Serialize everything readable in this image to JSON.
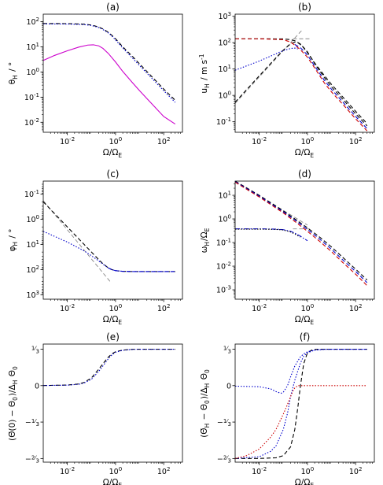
{
  "chart_data": [
    {
      "id": "a",
      "type": "line",
      "title": "(a)",
      "xlabel": "Ω/Ω_E",
      "ylabel": "θ_H / °",
      "xscale": "log",
      "yscale": "log",
      "xlim": [
        0.001,
        600
      ],
      "ylim": [
        0.004,
        200
      ],
      "yreverse": false,
      "xticks": [
        {
          "v": 0.01,
          "t": "10^-2"
        },
        {
          "v": 1,
          "t": "10^0"
        },
        {
          "v": 100,
          "t": "10^2"
        }
      ],
      "yticks": [
        {
          "v": 0.01,
          "t": "10^-2"
        },
        {
          "v": 0.1,
          "t": "10^-1"
        },
        {
          "v": 1,
          "t": "10^0"
        },
        {
          "v": 10,
          "t": "10^1"
        },
        {
          "v": 100,
          "t": "10^2"
        }
      ],
      "series": [
        {
          "color": "#000000",
          "dash": "dashed",
          "x": [
            0.001,
            0.01,
            0.05,
            0.1,
            0.2,
            0.3,
            0.5,
            0.7,
            1,
            2,
            5,
            10,
            30,
            100,
            300
          ],
          "y": [
            85,
            84,
            80,
            74,
            62,
            52,
            38,
            29,
            21,
            10,
            4.2,
            2.1,
            0.7,
            0.21,
            0.075
          ]
        },
        {
          "color": "#0000cc",
          "dash": "dotted",
          "x": [
            0.001,
            0.01,
            0.05,
            0.1,
            0.2,
            0.3,
            0.5,
            0.7,
            1,
            2,
            5,
            10,
            30,
            100,
            300
          ],
          "y": [
            82,
            81,
            77,
            71,
            59,
            49,
            36,
            27,
            19,
            9,
            3.6,
            1.8,
            0.6,
            0.18,
            0.062
          ]
        },
        {
          "color": "#cc00cc",
          "dash": "solid",
          "x": [
            0.001,
            0.003,
            0.01,
            0.03,
            0.07,
            0.12,
            0.2,
            0.3,
            0.5,
            1,
            2,
            5,
            10,
            30,
            100,
            300
          ],
          "y": [
            2.9,
            4.6,
            7,
            9.8,
            11.8,
            12.1,
            11,
            8.7,
            5.5,
            2.5,
            1.05,
            0.38,
            0.18,
            0.058,
            0.017,
            0.0085
          ]
        }
      ]
    },
    {
      "id": "b",
      "type": "line",
      "title": "(b)",
      "xlabel": "Ω/Ω_E",
      "ylabel": "u_H / m s^-1",
      "xscale": "log",
      "yscale": "log",
      "xlim": [
        0.001,
        600
      ],
      "ylim": [
        0.04,
        1200
      ],
      "yreverse": false,
      "xticks": [
        {
          "v": 0.01,
          "t": "10^-2"
        },
        {
          "v": 1,
          "t": "10^0"
        },
        {
          "v": 100,
          "t": "10^2"
        }
      ],
      "yticks": [
        {
          "v": 0.1,
          "t": "10^-1"
        },
        {
          "v": 1,
          "t": "10^0"
        },
        {
          "v": 10,
          "t": "10^1"
        },
        {
          "v": 100,
          "t": "10^2"
        },
        {
          "v": 1000,
          "t": "10^3"
        }
      ],
      "series": [
        {
          "color": "#888888",
          "dash": "dashed",
          "x": [
            0.001,
            0.6
          ],
          "y": [
            0.5,
            300
          ]
        },
        {
          "color": "#888888",
          "dash": "dashed",
          "x": [
            0.25,
            1.5
          ],
          "y": [
            140,
            140
          ]
        },
        {
          "color": "#000000",
          "dash": "dashed",
          "x": [
            0.001,
            0.01,
            0.05,
            0.1,
            0.2,
            0.3,
            0.4,
            0.6,
            1,
            2,
            5,
            10,
            30,
            100,
            300
          ],
          "y": [
            0.55,
            5.5,
            27,
            52,
            90,
            105,
            100,
            75,
            42,
            17,
            5.7,
            2.6,
            0.85,
            0.25,
            0.085
          ]
        },
        {
          "color": "#0000cc",
          "dash": "dotted",
          "x": [
            0.001,
            0.01,
            0.05,
            0.1,
            0.2,
            0.3,
            0.4
          ],
          "y": [
            9,
            20,
            38,
            50,
            60,
            62,
            58
          ]
        },
        {
          "color": "#000000",
          "dash": "dashed",
          "x": [
            0.001,
            0.01,
            0.1,
            0.2,
            0.3,
            0.5,
            0.7,
            1,
            2,
            5,
            10,
            30,
            100,
            300
          ],
          "y": [
            140,
            140,
            138,
            130,
            118,
            90,
            65,
            45,
            16,
            4.8,
            2.1,
            0.7,
            0.2,
            0.07
          ]
        },
        {
          "color": "#0000cc",
          "dash": "dashed",
          "x": [
            0.3,
            0.5,
            0.7,
            1,
            2,
            5,
            10,
            30,
            100,
            300
          ],
          "y": [
            85,
            65,
            48,
            34,
            13,
            3.8,
            1.7,
            0.55,
            0.16,
            0.055
          ]
        },
        {
          "color": "#cc0000",
          "dash": "dashed",
          "x": [
            0.001,
            0.01,
            0.1,
            0.2,
            0.3,
            0.5,
            0.7,
            1,
            2,
            5,
            10,
            30,
            100,
            300
          ],
          "y": [
            140,
            140,
            130,
            105,
            80,
            55,
            40,
            28,
            11,
            3,
            1.35,
            0.45,
            0.13,
            0.045
          ]
        }
      ]
    },
    {
      "id": "c",
      "type": "line",
      "title": "(c)",
      "xlabel": "Ω/Ω_E",
      "ylabel": "φ_H / °",
      "xscale": "log",
      "yscale": "log",
      "xlim": [
        0.001,
        600
      ],
      "ylim": [
        0.03,
        1500
      ],
      "yreverse": true,
      "xticks": [
        {
          "v": 0.01,
          "t": "10^-2"
        },
        {
          "v": 1,
          "t": "10^0"
        },
        {
          "v": 100,
          "t": "10^2"
        }
      ],
      "yticks": [
        {
          "v": 0.1,
          "t": "10^-1"
        },
        {
          "v": 1,
          "t": "10^0"
        },
        {
          "v": 10,
          "t": "10^1"
        },
        {
          "v": 100,
          "t": "10^2"
        },
        {
          "v": 1000,
          "t": "10^3"
        }
      ],
      "series": [
        {
          "color": "#888888",
          "dash": "dashed",
          "x": [
            0.001,
            0.6
          ],
          "y": [
            0.18,
            300
          ]
        },
        {
          "color": "#000000",
          "dash": "dashed",
          "x": [
            0.001,
            0.01,
            0.05,
            0.1,
            0.2,
            0.3,
            0.5,
            0.7,
            1,
            2,
            5,
            10,
            30,
            100,
            300
          ],
          "y": [
            0.2,
            2,
            10,
            20,
            40,
            58,
            85,
            100,
            110,
            117,
            119,
            120,
            120,
            120,
            120
          ]
        },
        {
          "color": "#0000cc",
          "dash": "dotted",
          "x": [
            0.001,
            0.01,
            0.05,
            0.1,
            0.2,
            0.3,
            0.5,
            0.7,
            1,
            2,
            5,
            10,
            30,
            100,
            300
          ],
          "y": [
            3,
            8,
            18,
            28,
            45,
            60,
            85,
            100,
            110,
            117,
            119,
            120,
            120,
            120,
            120
          ]
        },
        {
          "color": "#0000cc",
          "dash": "dashed",
          "x": [
            0.5,
            0.7,
            1,
            2,
            5,
            10,
            30,
            100,
            300
          ],
          "y": [
            86,
            100,
            110,
            117,
            119,
            120,
            120,
            120,
            120
          ]
        }
      ]
    },
    {
      "id": "d",
      "type": "line",
      "title": "(d)",
      "xlabel": "Ω/Ω_E",
      "ylabel": "ω_H/Ω_E",
      "xscale": "log",
      "yscale": "log",
      "xlim": [
        0.001,
        600
      ],
      "ylim": [
        0.0004,
        40
      ],
      "yreverse": false,
      "xticks": [
        {
          "v": 0.01,
          "t": "10^-2"
        },
        {
          "v": 1,
          "t": "10^0"
        },
        {
          "v": 100,
          "t": "10^2"
        }
      ],
      "yticks": [
        {
          "v": 0.001,
          "t": "10^-3"
        },
        {
          "v": 0.01,
          "t": "10^-2"
        },
        {
          "v": 0.1,
          "t": "10^-1"
        },
        {
          "v": 1,
          "t": "10^0"
        },
        {
          "v": 10,
          "t": "10^1"
        }
      ],
      "series": [
        {
          "color": "#888888",
          "dash": "dashed",
          "x": [
            0.25,
            1.5
          ],
          "y": [
            0.38,
            0.38
          ]
        },
        {
          "color": "#888888",
          "dash": "dashed",
          "x": [
            0.001,
            1
          ],
          "y": [
            40,
            0.55
          ]
        },
        {
          "color": "#000000",
          "dash": "dashed",
          "x": [
            0.001,
            0.01,
            0.1,
            0.3,
            1,
            3,
            10,
            30,
            100,
            300
          ],
          "y": [
            40,
            10,
            2.2,
            1,
            0.42,
            0.18,
            0.065,
            0.023,
            0.0075,
            0.0026
          ]
        },
        {
          "color": "#0000cc",
          "dash": "dashed",
          "x": [
            0.001,
            0.01,
            0.1,
            0.3,
            1,
            3,
            10,
            30,
            100,
            300
          ],
          "y": [
            38,
            9.2,
            2,
            0.9,
            0.36,
            0.15,
            0.052,
            0.018,
            0.006,
            0.002
          ]
        },
        {
          "color": "#cc0000",
          "dash": "dashed",
          "x": [
            0.001,
            0.01,
            0.1,
            0.3,
            1,
            3,
            10,
            30,
            100,
            300
          ],
          "y": [
            36,
            8.5,
            1.8,
            0.78,
            0.3,
            0.12,
            0.041,
            0.014,
            0.0046,
            0.0015
          ]
        },
        {
          "color": "#0000cc",
          "dash": "dashdot",
          "x": [
            0.001,
            0.01,
            0.05,
            0.1,
            0.2,
            0.3,
            0.5,
            0.7,
            1
          ],
          "y": [
            0.38,
            0.38,
            0.37,
            0.35,
            0.3,
            0.25,
            0.19,
            0.15,
            0.12
          ]
        },
        {
          "color": "#000000",
          "dash": "dotted",
          "x": [
            0.001,
            0.01,
            0.05,
            0.1,
            0.2,
            0.3,
            0.5
          ],
          "y": [
            0.37,
            0.37,
            0.36,
            0.34,
            0.28,
            0.23,
            0.17
          ]
        }
      ]
    },
    {
      "id": "e",
      "type": "line",
      "title": "(e)",
      "xlabel": "Ω/Ω_E",
      "ylabel": "(Θ̄(0) − Θ_0)/Δ_H Θ_0",
      "xscale": "log",
      "yscale": "linear",
      "xlim": [
        0.001,
        600
      ],
      "ylim": [
        -0.7,
        0.38
      ],
      "yreverse": false,
      "xticks": [
        {
          "v": 0.01,
          "t": "10^-2"
        },
        {
          "v": 1,
          "t": "10^0"
        },
        {
          "v": 100,
          "t": "10^2"
        }
      ],
      "yticks": [
        {
          "v": 0.333333,
          "t": "1/3"
        },
        {
          "v": 0,
          "t": "0"
        },
        {
          "v": -0.333333,
          "t": "−1/3"
        },
        {
          "v": -0.666667,
          "t": "−2/3"
        }
      ],
      "series": [
        {
          "color": "#000000",
          "dash": "dashed",
          "x": [
            0.001,
            0.01,
            0.03,
            0.05,
            0.1,
            0.2,
            0.3,
            0.5,
            0.7,
            1,
            2,
            5,
            10,
            100,
            300
          ],
          "y": [
            0.001,
            0.005,
            0.015,
            0.03,
            0.07,
            0.15,
            0.2,
            0.26,
            0.29,
            0.31,
            0.325,
            0.332,
            0.333,
            0.333,
            0.333
          ]
        },
        {
          "color": "#0000cc",
          "dash": "dotted",
          "x": [
            0.001,
            0.01,
            0.03,
            0.05,
            0.1,
            0.2,
            0.3,
            0.5,
            0.7,
            1,
            2,
            5,
            10,
            100,
            300
          ],
          "y": [
            0.001,
            0.004,
            0.012,
            0.024,
            0.058,
            0.13,
            0.18,
            0.245,
            0.28,
            0.305,
            0.323,
            0.331,
            0.333,
            0.333,
            0.333
          ]
        }
      ]
    },
    {
      "id": "f",
      "type": "line",
      "title": "(f)",
      "xlabel": "Ω/Ω_E",
      "ylabel": "(Θ̄_H − Θ_0)/Δ_H Θ_0",
      "xscale": "log",
      "yscale": "linear",
      "xlim": [
        0.001,
        600
      ],
      "ylim": [
        -0.7,
        0.38
      ],
      "yreverse": false,
      "xticks": [
        {
          "v": 0.01,
          "t": "10^-2"
        },
        {
          "v": 1,
          "t": "10^0"
        },
        {
          "v": 100,
          "t": "10^2"
        }
      ],
      "yticks": [
        {
          "v": 0.333333,
          "t": "1/3"
        },
        {
          "v": 0,
          "t": "0"
        },
        {
          "v": -0.333333,
          "t": "−1/3"
        },
        {
          "v": -0.666667,
          "t": "−2/3"
        }
      ],
      "series": [
        {
          "color": "#000000",
          "dash": "dashed",
          "x": [
            0.001,
            0.01,
            0.05,
            0.1,
            0.2,
            0.3,
            0.4,
            0.5,
            0.7,
            1,
            1.5,
            2,
            3,
            5,
            10,
            300
          ],
          "y": [
            -0.666,
            -0.666,
            -0.66,
            -0.64,
            -0.56,
            -0.4,
            -0.2,
            -0.02,
            0.2,
            0.3,
            0.325,
            0.33,
            0.333,
            0.333,
            0.333,
            0.333
          ]
        },
        {
          "color": "#0000cc",
          "dash": "dotted",
          "x": [
            0.001,
            0.01,
            0.03,
            0.05,
            0.08,
            0.1,
            0.15,
            0.2,
            0.3,
            0.5,
            0.7,
            1,
            2,
            5,
            10,
            300
          ],
          "y": [
            -0.005,
            -0.01,
            -0.03,
            -0.055,
            -0.07,
            -0.06,
            0.0,
            0.08,
            0.18,
            0.26,
            0.29,
            0.31,
            0.325,
            0.332,
            0.333,
            0.333
          ]
        },
        {
          "color": "#0000cc",
          "dash": "dotted",
          "x": [
            0.001,
            0.01,
            0.03,
            0.05,
            0.1,
            0.15,
            0.2,
            0.3,
            0.5,
            0.7,
            1,
            2,
            5,
            10,
            300
          ],
          "y": [
            -0.666,
            -0.65,
            -0.6,
            -0.55,
            -0.4,
            -0.25,
            -0.1,
            0.05,
            0.2,
            0.27,
            0.3,
            0.325,
            0.332,
            0.333,
            0.333
          ]
        },
        {
          "color": "#cc0000",
          "dash": "dotted",
          "x": [
            0.001,
            0.003,
            0.01,
            0.03,
            0.05,
            0.1,
            0.15,
            0.2,
            0.25,
            0.3,
            0.4,
            0.5,
            0.7,
            1,
            2,
            5,
            10,
            100,
            300
          ],
          "y": [
            -0.666,
            -0.64,
            -0.58,
            -0.47,
            -0.4,
            -0.26,
            -0.17,
            -0.1,
            -0.05,
            -0.02,
            0.0,
            0.0,
            0.0,
            0.0,
            0.0,
            0.0,
            0.0,
            0.0,
            0.0
          ]
        }
      ]
    }
  ]
}
